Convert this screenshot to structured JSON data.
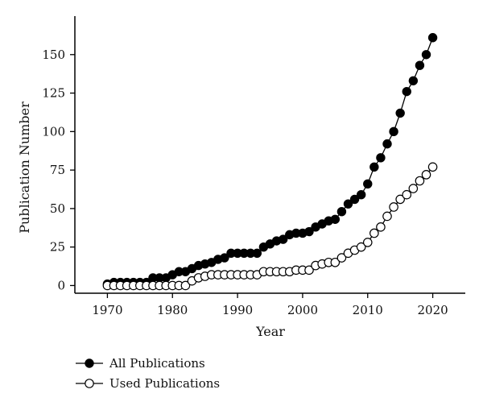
{
  "chart_data": {
    "type": "line",
    "title": "",
    "xlabel": "Year",
    "ylabel": "Publication Number",
    "xlim": [
      1965,
      2025
    ],
    "ylim": [
      -5,
      175
    ],
    "xticks": [
      1970,
      1980,
      1990,
      2000,
      2010,
      2020
    ],
    "yticks": [
      0,
      25,
      50,
      75,
      100,
      125,
      150
    ],
    "grid": false,
    "legend_placement": "bottom-left",
    "x": [
      1970,
      1971,
      1972,
      1973,
      1974,
      1975,
      1976,
      1977,
      1978,
      1979,
      1980,
      1981,
      1982,
      1983,
      1984,
      1985,
      1986,
      1987,
      1988,
      1989,
      1990,
      1991,
      1992,
      1993,
      1994,
      1995,
      1996,
      1997,
      1998,
      1999,
      2000,
      2001,
      2002,
      2003,
      2004,
      2005,
      2006,
      2007,
      2008,
      2009,
      2010,
      2011,
      2012,
      2013,
      2014,
      2015,
      2016,
      2017,
      2018,
      2019,
      2020
    ],
    "series": [
      {
        "name": "All Publications",
        "marker": "filled-circle",
        "color": "#000000",
        "values": [
          1,
          2,
          2,
          2,
          2,
          2,
          2,
          5,
          5,
          5,
          7,
          9,
          9,
          11,
          13,
          14,
          15,
          17,
          18,
          21,
          21,
          21,
          21,
          21,
          25,
          27,
          29,
          30,
          33,
          34,
          34,
          35,
          38,
          40,
          42,
          43,
          48,
          53,
          56,
          59,
          66,
          77,
          83,
          92,
          100,
          112,
          126,
          133,
          143,
          150,
          161
        ]
      },
      {
        "name": "Used Publications",
        "marker": "open-circle",
        "color": "#000000",
        "values": [
          0,
          0,
          0,
          0,
          0,
          0,
          0,
          0,
          0,
          0,
          0,
          0,
          0,
          3,
          5,
          6,
          7,
          7,
          7,
          7,
          7,
          7,
          7,
          7,
          9,
          9,
          9,
          9,
          9,
          10,
          10,
          10,
          13,
          14,
          15,
          15,
          18,
          21,
          23,
          25,
          28,
          34,
          38,
          45,
          51,
          56,
          59,
          63,
          68,
          72,
          77
        ]
      }
    ]
  }
}
